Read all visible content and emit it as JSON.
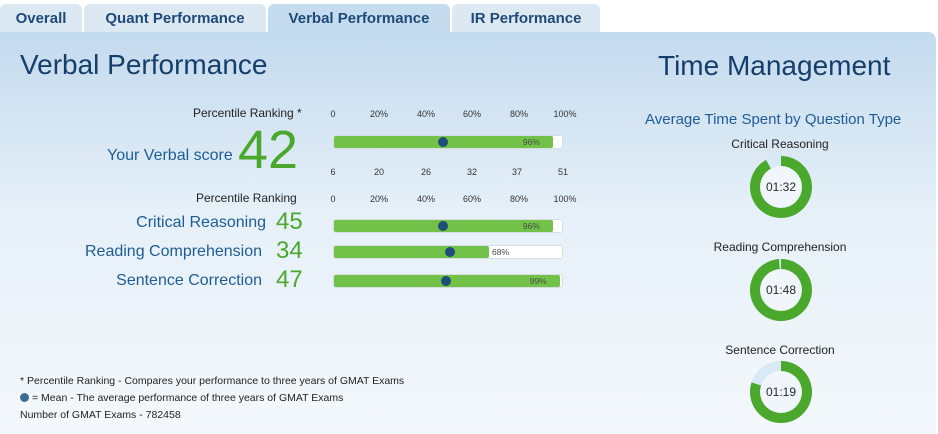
{
  "tabs": [
    {
      "label": "Overall",
      "active": false
    },
    {
      "label": "Quant Performance",
      "active": false
    },
    {
      "label": "Verbal Performance",
      "active": true
    },
    {
      "label": "IR Performance",
      "active": false
    }
  ],
  "verbal": {
    "title": "Verbal Performance",
    "percentile_header": "Percentile Ranking *",
    "percentile_ticks": [
      "0",
      "20%",
      "40%",
      "60%",
      "80%",
      "100%"
    ],
    "score_ticks": [
      "6",
      "20",
      "26",
      "32",
      "37",
      "51"
    ],
    "overall": {
      "label": "Your Verbal score",
      "score": "42",
      "percentile": 96,
      "percentile_label": "96%",
      "mean_percentile": 48
    },
    "sub_header": "Percentile Ranking",
    "sub_ticks": [
      "0",
      "20%",
      "40%",
      "60%",
      "80%",
      "100%"
    ],
    "subscores": [
      {
        "label": "Critical Reasoning",
        "score": "45",
        "percentile": 96,
        "percentile_label": "96%",
        "mean_percentile": 48
      },
      {
        "label": "Reading Comprehension",
        "score": "34",
        "percentile": 68,
        "percentile_label": "68%",
        "mean_percentile": 51
      },
      {
        "label": "Sentence Correction",
        "score": "47",
        "percentile": 99,
        "percentile_label": "99%",
        "mean_percentile": 49
      }
    ],
    "footnotes": {
      "percentile_note": "* Percentile Ranking - Compares your performance to three years of GMAT Exams",
      "mean_note": "= Mean - The average performance of three years of GMAT Exams",
      "count_note": "Number of GMAT Exams - 782458"
    }
  },
  "time_management": {
    "title": "Time Management",
    "subtitle": "Average Time Spent by Question Type",
    "items": [
      {
        "label": "Critical Reasoning",
        "time": "01:32",
        "fraction": 0.92
      },
      {
        "label": "Reading Comprehension",
        "time": "01:48",
        "fraction": 0.99
      },
      {
        "label": "Sentence Correction",
        "time": "01:19",
        "fraction": 0.8
      }
    ]
  },
  "colors": {
    "bar_green": "#72c249",
    "score_green": "#4aa82c",
    "mean_dot": "#1f4f79",
    "title_navy": "#143f6a",
    "label_blue": "#1e5d94",
    "donut_green": "#4aa82c",
    "donut_light": "#d9eaf7"
  }
}
